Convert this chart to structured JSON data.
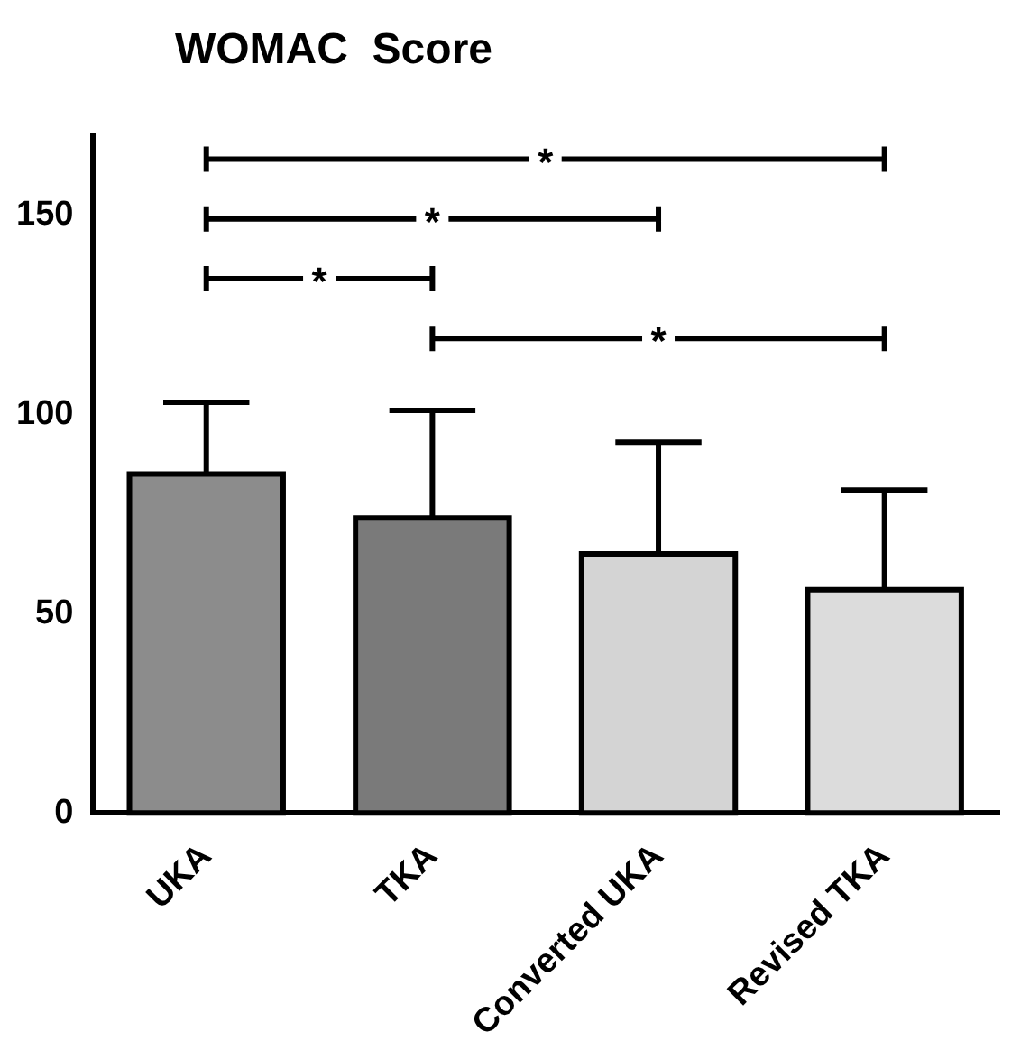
{
  "chart_data": {
    "type": "bar",
    "title": "WOMAC  Score",
    "categories": [
      "UKA",
      "TKA",
      "Converted UKA",
      "Revised TKA"
    ],
    "values": [
      85,
      74,
      65,
      56
    ],
    "errors": [
      [
        85,
        103
      ],
      [
        74,
        101
      ],
      [
        65,
        93
      ],
      [
        56,
        81
      ]
    ],
    "colors": [
      "#8c8c8c",
      "#7a7a7a",
      "#d4d4d4",
      "#dcdcdc"
    ],
    "ylim": [
      0,
      170
    ],
    "yticks": [
      0,
      50,
      100,
      150
    ],
    "grid": false,
    "legend": false,
    "annotations": [
      "*",
      "*",
      "*",
      "*"
    ]
  }
}
